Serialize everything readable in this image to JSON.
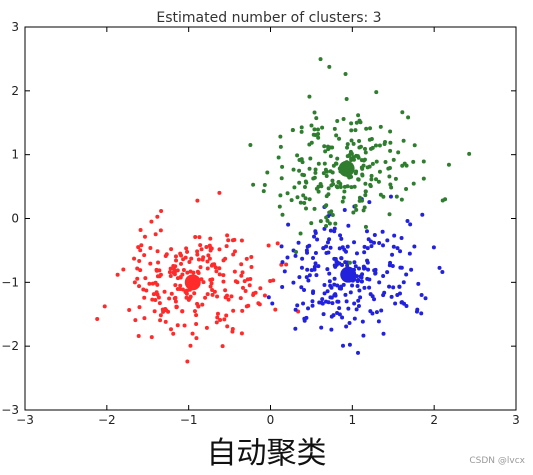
{
  "chart_data": {
    "type": "scatter",
    "title": "Estimated number of clusters: 3",
    "xlabel": "",
    "ylabel": "",
    "xlim": [
      -3,
      3
    ],
    "ylim": [
      -3,
      3
    ],
    "xticks": [
      -3,
      -2,
      -1,
      0,
      1,
      2,
      3
    ],
    "yticks": [
      -3,
      -2,
      -1,
      0,
      1,
      2,
      3
    ],
    "xtick_labels": [
      "−3",
      "−2",
      "−1",
      "0",
      "1",
      "2",
      "3"
    ],
    "ytick_labels": [
      "−3",
      "−2",
      "−1",
      "0",
      "1",
      "2",
      "3"
    ],
    "grid": false,
    "legend": "none",
    "series": [
      {
        "color": "#ff2b2b",
        "center": [
          -0.95,
          -1.0
        ],
        "points_count": 250,
        "spread": 0.45
      },
      {
        "color": "#2222dd",
        "center": [
          0.95,
          -0.88
        ],
        "points_count": 250,
        "spread": 0.45
      },
      {
        "color": "#2f7d2f",
        "center": [
          0.93,
          0.78
        ],
        "points_count": 250,
        "spread": 0.45
      }
    ]
  },
  "caption": "自动聚类",
  "watermark": "CSDN @lvcx"
}
